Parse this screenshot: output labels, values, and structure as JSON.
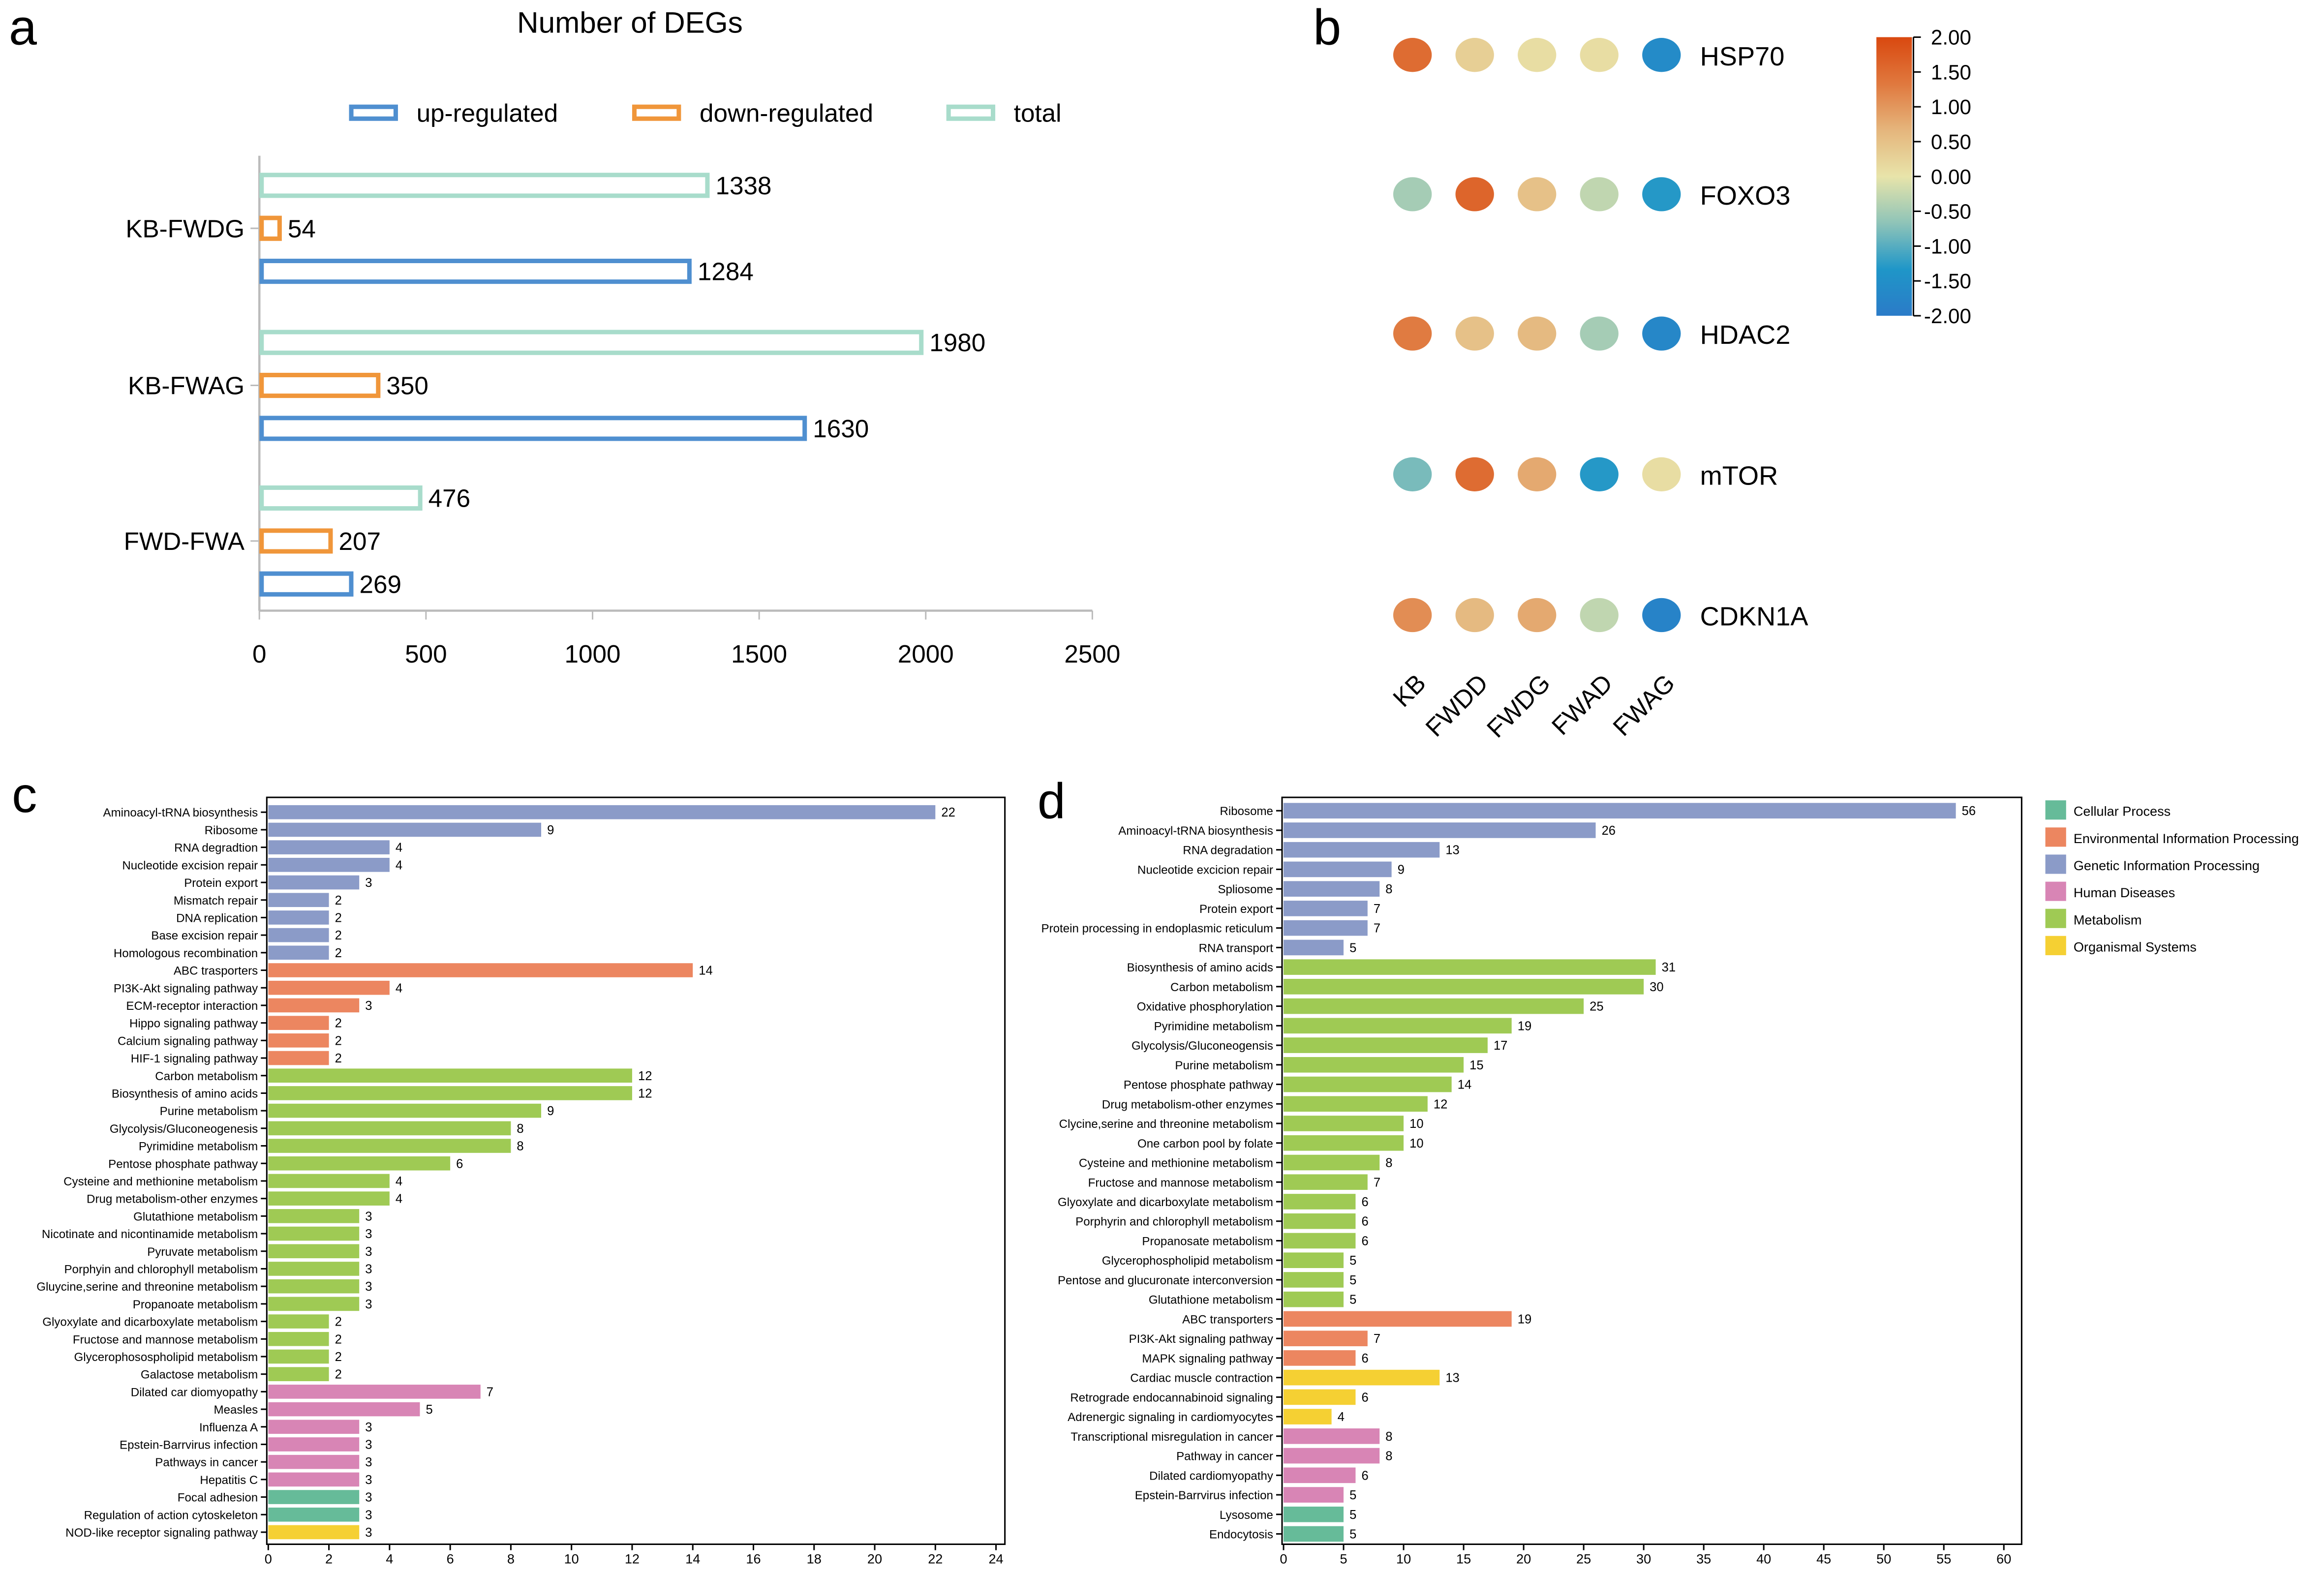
{
  "chart_data": [
    {
      "panel": "a",
      "type": "bar",
      "orientation": "horizontal",
      "title": "Number of DEGs",
      "categories": [
        "KB-FWDG",
        "KB-FWAG",
        "FWD-FWA"
      ],
      "series": [
        {
          "name": "total",
          "values": [
            1338,
            1980,
            476
          ],
          "color": "#a8dccb"
        },
        {
          "name": "down-regulated",
          "values": [
            54,
            350,
            207
          ],
          "color": "#f0963a"
        },
        {
          "name": "up-regulated",
          "values": [
            1284,
            1630,
            269
          ],
          "color": "#4f8fd0"
        }
      ],
      "legend_order": [
        "up-regulated",
        "down-regulated",
        "total"
      ],
      "legend_placement": "top",
      "xlim": [
        0,
        2500
      ],
      "xticks": [
        0,
        500,
        1000,
        1500,
        2000,
        2500
      ],
      "bar_style": "outline",
      "grid": false
    },
    {
      "panel": "b",
      "type": "heatmap",
      "style": "dot",
      "columns": [
        "KB",
        "FWDD",
        "FWDG",
        "FWAD",
        "FWAG"
      ],
      "rows": [
        "HSP70",
        "FOXO3",
        "HDAC2",
        "mTOR",
        "CDKN1A"
      ],
      "values": [
        [
          1.5,
          0.3,
          0.1,
          0.1,
          -1.6
        ],
        [
          -0.5,
          1.6,
          0.5,
          -0.3,
          -1.3
        ],
        [
          1.3,
          0.5,
          0.6,
          -0.5,
          -1.7
        ],
        [
          -0.8,
          1.5,
          0.8,
          -1.3,
          0.1
        ],
        [
          1.1,
          0.6,
          0.8,
          -0.3,
          -1.8
        ]
      ],
      "colorbar": {
        "range": [
          -2,
          2
        ],
        "ticks": [
          "2.00",
          "1.50",
          "1.00",
          "0.50",
          "0.00",
          "-0.50",
          "-1.00",
          "-1.50",
          "-2.00"
        ],
        "colors": [
          "#2b7bc8",
          "#1f96c8",
          "#8fc4b8",
          "#e8e4aa",
          "#e5b57c",
          "#e0783e",
          "#d9480f"
        ]
      }
    },
    {
      "panel": "c",
      "type": "bar",
      "orientation": "horizontal",
      "xlim": [
        0,
        24
      ],
      "xticks": [
        0,
        2,
        4,
        6,
        8,
        10,
        12,
        14,
        16,
        18,
        20,
        22,
        24
      ],
      "rows": [
        {
          "label": "Aminoacyl-tRNA biosynthesis",
          "value": 22,
          "group": 2
        },
        {
          "label": "Ribosome",
          "value": 9,
          "group": 2
        },
        {
          "label": "RNA degradtion",
          "value": 4,
          "group": 2
        },
        {
          "label": "Nucleotide excision repair",
          "value": 4,
          "group": 2
        },
        {
          "label": "Protein export",
          "value": 3,
          "group": 2
        },
        {
          "label": "Mismatch repair",
          "value": 2,
          "group": 2
        },
        {
          "label": "DNA replication",
          "value": 2,
          "group": 2
        },
        {
          "label": "Base excision repair",
          "value": 2,
          "group": 2
        },
        {
          "label": "Homologous recombination",
          "value": 2,
          "group": 2
        },
        {
          "label": "ABC trasporters",
          "value": 14,
          "group": 1
        },
        {
          "label": "PI3K-Akt signaling pathway",
          "value": 4,
          "group": 1
        },
        {
          "label": "ECM-receptor interaction",
          "value": 3,
          "group": 1
        },
        {
          "label": "Hippo signaling pathway",
          "value": 2,
          "group": 1
        },
        {
          "label": "Calcium signaling pathway",
          "value": 2,
          "group": 1
        },
        {
          "label": "HIF-1 signaling pathway",
          "value": 2,
          "group": 1
        },
        {
          "label": "Carbon metabolism",
          "value": 12,
          "group": 4
        },
        {
          "label": "Biosynthesis of amino acids",
          "value": 12,
          "group": 4
        },
        {
          "label": "Purine metabolism",
          "value": 9,
          "group": 4
        },
        {
          "label": "Glycolysis/Gluconeogenesis",
          "value": 8,
          "group": 4
        },
        {
          "label": "Pyrimidine metabolism",
          "value": 8,
          "group": 4
        },
        {
          "label": "Pentose phosphate pathway",
          "value": 6,
          "group": 4
        },
        {
          "label": "Cysteine and methionine metabolism",
          "value": 4,
          "group": 4
        },
        {
          "label": "Drug metabolism-other enzymes",
          "value": 4,
          "group": 4
        },
        {
          "label": "Glutathione metabolism",
          "value": 3,
          "group": 4
        },
        {
          "label": "Nicotinate and nicontinamide metabolism",
          "value": 3,
          "group": 4
        },
        {
          "label": "Pyruvate metabolism",
          "value": 3,
          "group": 4
        },
        {
          "label": "Porphyin and chlorophyll metabolism",
          "value": 3,
          "group": 4
        },
        {
          "label": "Gluycine,serine and threonine metabolism",
          "value": 3,
          "group": 4
        },
        {
          "label": "Propanoate metabolism",
          "value": 3,
          "group": 4
        },
        {
          "label": "Glyoxylate and dicarboxylate metabolism",
          "value": 2,
          "group": 4
        },
        {
          "label": "Fructose and mannose metabolism",
          "value": 2,
          "group": 4
        },
        {
          "label": "Glycerophosospholipid metabolism",
          "value": 2,
          "group": 4
        },
        {
          "label": "Galactose metabolism",
          "value": 2,
          "group": 4
        },
        {
          "label": "Dilated car diomyopathy",
          "value": 7,
          "group": 3
        },
        {
          "label": "Measles",
          "value": 5,
          "group": 3
        },
        {
          "label": "Influenza A",
          "value": 3,
          "group": 3
        },
        {
          "label": "Epstein-Barrvirus infection",
          "value": 3,
          "group": 3
        },
        {
          "label": "Pathways in cancer",
          "value": 3,
          "group": 3
        },
        {
          "label": "Hepatitis C",
          "value": 3,
          "group": 3
        },
        {
          "label": "Focal adhesion",
          "value": 3,
          "group": 0
        },
        {
          "label": "Regulation of action cytoskeleton",
          "value": 3,
          "group": 0
        },
        {
          "label": "NOD-like receptor signaling pathway",
          "value": 3,
          "group": 5
        }
      ]
    },
    {
      "panel": "d",
      "type": "bar",
      "orientation": "horizontal",
      "xlim": [
        0,
        60
      ],
      "xticks": [
        0,
        5,
        10,
        15,
        20,
        25,
        30,
        35,
        40,
        45,
        50,
        55,
        60
      ],
      "legend_placement": "right",
      "rows": [
        {
          "label": "Ribosome",
          "value": 56,
          "group": 2
        },
        {
          "label": "Aminoacyl-tRNA biosynthesis",
          "value": 26,
          "group": 2
        },
        {
          "label": "RNA degradation",
          "value": 13,
          "group": 2
        },
        {
          "label": "Nucleotide excicion repair",
          "value": 9,
          "group": 2
        },
        {
          "label": "Spliosome",
          "value": 8,
          "group": 2
        },
        {
          "label": "Protein export",
          "value": 7,
          "group": 2
        },
        {
          "label": "Protein processing in endoplasmic reticulum",
          "value": 7,
          "group": 2
        },
        {
          "label": "RNA transport",
          "value": 5,
          "group": 2
        },
        {
          "label": "Biosynthesis of amino acids",
          "value": 31,
          "group": 4
        },
        {
          "label": "Carbon metabolism",
          "value": 30,
          "group": 4
        },
        {
          "label": "Oxidative phosphorylation",
          "value": 25,
          "group": 4
        },
        {
          "label": "Pyrimidine metabolism",
          "value": 19,
          "group": 4
        },
        {
          "label": "Glycolysis/Gluconeogensis",
          "value": 17,
          "group": 4
        },
        {
          "label": "Purine metabolism",
          "value": 15,
          "group": 4
        },
        {
          "label": "Pentose phosphate pathway",
          "value": 14,
          "group": 4
        },
        {
          "label": "Drug metabolism-other enzymes",
          "value": 12,
          "group": 4
        },
        {
          "label": "Clycine,serine and threonine metabolism",
          "value": 10,
          "group": 4
        },
        {
          "label": "One carbon pool by folate",
          "value": 10,
          "group": 4
        },
        {
          "label": "Cysteine and methionine metabolism",
          "value": 8,
          "group": 4
        },
        {
          "label": "Fructose and mannose metabolism",
          "value": 7,
          "group": 4
        },
        {
          "label": "Glyoxylate and dicarboxylate metabolism",
          "value": 6,
          "group": 4
        },
        {
          "label": "Porphyrin and chlorophyll metabolism",
          "value": 6,
          "group": 4
        },
        {
          "label": "Propanosate metabolism",
          "value": 6,
          "group": 4
        },
        {
          "label": "Glycerophospholipid metabolism",
          "value": 5,
          "group": 4
        },
        {
          "label": "Pentose and glucuronate interconversion",
          "value": 5,
          "group": 4
        },
        {
          "label": "Glutathione metabolism",
          "value": 5,
          "group": 4
        },
        {
          "label": "ABC transporters",
          "value": 19,
          "group": 1
        },
        {
          "label": "PI3K-Akt signaling pathway",
          "value": 7,
          "group": 1
        },
        {
          "label": "MAPK signaling pathway",
          "value": 6,
          "group": 1
        },
        {
          "label": "Cardiac muscle contraction",
          "value": 13,
          "group": 5
        },
        {
          "label": "Retrograde endocannabinoid signaling",
          "value": 6,
          "group": 5
        },
        {
          "label": "Adrenergic signaling in cardiomyocytes",
          "value": 4,
          "group": 5
        },
        {
          "label": "Transcriptional misregulation in cancer",
          "value": 8,
          "group": 3
        },
        {
          "label": "Pathway in cancer",
          "value": 8,
          "group": 3
        },
        {
          "label": "Dilated cardiomyopathy",
          "value": 6,
          "group": 3
        },
        {
          "label": "Epstein-Barrvirus infection",
          "value": 5,
          "group": 3
        },
        {
          "label": "Lysosome",
          "value": 5,
          "group": 0
        },
        {
          "label": "Endocytosis",
          "value": 5,
          "group": 0
        }
      ]
    }
  ],
  "groups": [
    {
      "name": "Cellular Process",
      "color": "#66bb99"
    },
    {
      "name": "Environmental Information Processing",
      "color": "#ec8660"
    },
    {
      "name": "Genetic Information Processing",
      "color": "#8b9bc8"
    },
    {
      "name": "Human Diseases",
      "color": "#d885b5"
    },
    {
      "name": "Metabolism",
      "color": "#9fca54"
    },
    {
      "name": "Organismal Systems",
      "color": "#f5d033"
    }
  ],
  "panel_labels": [
    "a",
    "b",
    "c",
    "d"
  ]
}
